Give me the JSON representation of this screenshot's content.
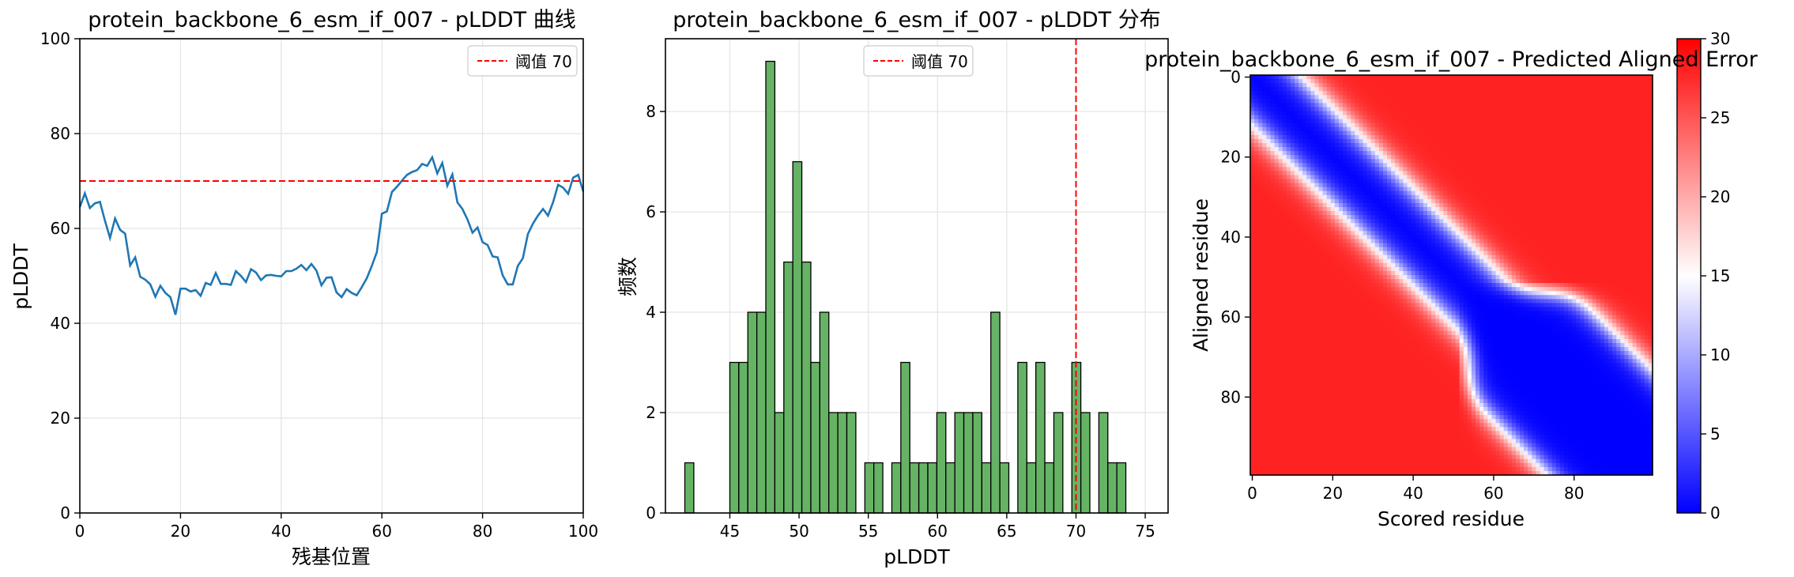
{
  "chart_data": [
    {
      "type": "line",
      "title": "protein_backbone_6_esm_if_007 - pLDDT 曲线",
      "xlabel": "残基位置",
      "ylabel": "pLDDT",
      "xlim": [
        0,
        100
      ],
      "ylim": [
        0,
        100
      ],
      "xticks": [
        0,
        20,
        40,
        60,
        80,
        100
      ],
      "yticks": [
        0,
        20,
        40,
        60,
        80,
        100
      ],
      "grid": true,
      "legend": "top-right",
      "colors": {
        "line": "#1f77b4",
        "threshold": "#ff0000"
      },
      "threshold": {
        "value": 70,
        "label": "阈值 70"
      },
      "series": [
        {
          "values": [
            64.5,
            67.4,
            64.3,
            65.3,
            65.6,
            61.6,
            58.0,
            62.1,
            59.7,
            58.9,
            52.2,
            53.9,
            49.8,
            49.2,
            48.2,
            45.6,
            47.9,
            46.4,
            45.5,
            41.8,
            47.3,
            47.3,
            46.7,
            47.0,
            45.8,
            48.5,
            48.1,
            50.6,
            48.3,
            48.3,
            48.1,
            51.0,
            50.0,
            48.7,
            51.4,
            50.7,
            49.1,
            50.1,
            50.2,
            50.0,
            49.9,
            51.0,
            51.0,
            51.5,
            52.3,
            51.2,
            52.5,
            51.1,
            48.0,
            49.6,
            49.7,
            46.5,
            45.5,
            47.2,
            46.4,
            45.9,
            47.6,
            49.5,
            52.1,
            55.0,
            63.1,
            63.6,
            67.7,
            68.8,
            70.1,
            71.3,
            71.9,
            72.3,
            73.6,
            73.2,
            75.0,
            71.6,
            73.8,
            69.0,
            71.4,
            65.5,
            64.1,
            61.9,
            59.1,
            60.2,
            57.1,
            56.5,
            54.1,
            53.9,
            50.1,
            48.2,
            48.2,
            52.1,
            53.7,
            58.8,
            61.0,
            62.7,
            64.1,
            62.7,
            65.5,
            69.2,
            68.6,
            67.3,
            70.7,
            71.3,
            67.8
          ]
        }
      ]
    },
    {
      "type": "bar",
      "title": "protein_backbone_6_esm_if_007 - pLDDT 分布",
      "xlabel": "pLDDT",
      "ylabel": "频数",
      "xlim": [
        40.35,
        76.65
      ],
      "ylim": [
        0,
        9.45
      ],
      "xticks": [
        45,
        50,
        55,
        60,
        65,
        70,
        75
      ],
      "yticks": [
        0,
        2,
        4,
        6,
        8
      ],
      "grid": true,
      "legend": "top-center",
      "colors": {
        "bar": "#66b366",
        "edge": "#000000",
        "threshold": "#ff0000"
      },
      "threshold": {
        "value": 70,
        "label": "阈值 70"
      },
      "bin_start": 41.75,
      "bin_width": 0.65,
      "counts": [
        1,
        0,
        0,
        0,
        0,
        3,
        3,
        4,
        4,
        9,
        2,
        5,
        7,
        5,
        3,
        4,
        2,
        2,
        2,
        0,
        1,
        1,
        0,
        1,
        3,
        1,
        1,
        1,
        2,
        1,
        2,
        2,
        2,
        1,
        4,
        1,
        0,
        3,
        1,
        3,
        1,
        2,
        0,
        3,
        2,
        0,
        2,
        1,
        1,
        0
      ]
    },
    {
      "type": "heatmap",
      "title": "protein_backbone_6_esm_if_007 - Predicted Aligned Error",
      "xlabel": "Scored residue",
      "ylabel": "Aligned residue",
      "size": 100,
      "xticks": [
        0,
        20,
        40,
        60,
        80
      ],
      "yticks": [
        0,
        20,
        40,
        60,
        80
      ],
      "colorbar": {
        "min": 0,
        "max": 30,
        "ticks": [
          0,
          5,
          10,
          15,
          20,
          25,
          30
        ],
        "colormap": "bwr"
      }
    }
  ]
}
